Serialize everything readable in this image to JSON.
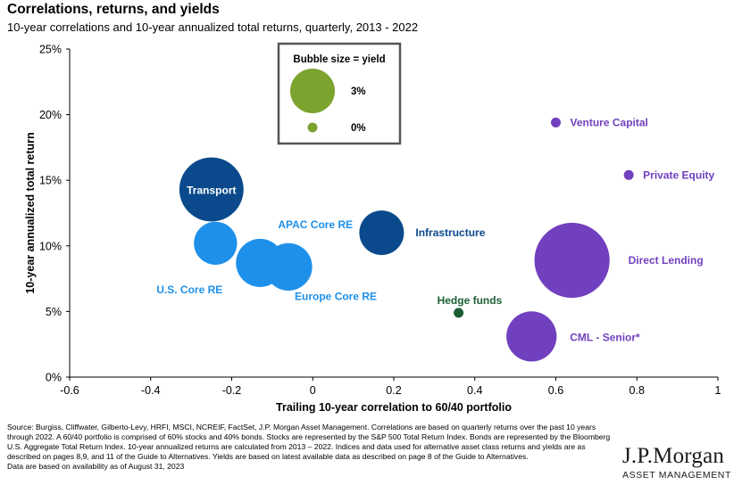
{
  "header": {
    "title": "Correlations, returns, and yields",
    "subtitle": "10-year correlations and 10-year annualized total returns, quarterly, 2013 - 2022"
  },
  "chart_data": {
    "type": "scatter",
    "xlabel": "Trailing 10-year correlation to 60/40 portfolio",
    "ylabel": "10-year annualized total return",
    "xlim": [
      -0.6,
      1.0
    ],
    "ylim": [
      0,
      25
    ],
    "x_ticks": [
      "-0.6",
      "-0.4",
      "-0.2",
      "0",
      "0.2",
      "0.4",
      "0.6",
      "0.8",
      "1"
    ],
    "y_ticks": [
      "0%",
      "5%",
      "10%",
      "15%",
      "20%",
      "25%"
    ],
    "grid": false,
    "size_encoding": "yield",
    "legend": {
      "title": "Bubble size = yield",
      "placement": "top-center",
      "items": [
        {
          "label": "3%",
          "yield": 3.0
        },
        {
          "label": "0%",
          "yield": 0.0
        }
      ]
    },
    "points": [
      {
        "label": "Venture Capital",
        "x": 0.6,
        "y": 19.4,
        "yield": 0.1,
        "color": "#7140bf"
      },
      {
        "label": "Private Equity",
        "x": 0.78,
        "y": 15.4,
        "yield": 0.1,
        "color": "#7140bf"
      },
      {
        "label": "Direct Lending",
        "x": 0.64,
        "y": 8.9,
        "yield": 8.5,
        "color": "#7140bf"
      },
      {
        "label": "CML - Senior*",
        "x": 0.54,
        "y": 3.1,
        "yield": 3.8,
        "color": "#7140bf"
      },
      {
        "label": "Transport",
        "x": -0.25,
        "y": 14.3,
        "yield": 6.2,
        "color": "#0a4a8c"
      },
      {
        "label": "Infrastructure",
        "x": 0.17,
        "y": 11.0,
        "yield": 3.0,
        "color": "#0a4a8c"
      },
      {
        "label": "APAC Core RE",
        "x": -0.24,
        "y": 10.2,
        "yield": 2.8,
        "color": "#1e90ea"
      },
      {
        "label": "U.S. Core RE",
        "x": -0.13,
        "y": 8.7,
        "yield": 3.5,
        "color": "#1e90ea"
      },
      {
        "label": "Europe Core RE",
        "x": -0.06,
        "y": 8.4,
        "yield": 3.4,
        "color": "#1e90ea"
      },
      {
        "label": "Hedge funds",
        "x": 0.36,
        "y": 4.9,
        "yield": 0.1,
        "color": "#1c5e33"
      }
    ]
  },
  "footer": {
    "source": "Source: Burgiss, Cliffwater, Gilberto-Levy, HRFI, MSCI, NCREIF, FactSet, J.P. Morgan Asset Management. Correlations are based on quarterly returns over the past 10 years through 2022. A 60/40 portfolio is comprised of 60% stocks and 40% bonds. Stocks are represented by the S&P 500 Total Return Index. Bonds are represented by the Bloomberg U.S. Aggregate Total Return Index. 10-year annualized returns are calculated from 2013 – 2022. Indices and data used for alternative asset class returns and yields are as described on pages 8,9, and 11 of the Guide to Alternatives. Yields are based on latest available data as described on page 8 of the Guide to Alternatives.",
    "availability": "Data are based on availability as of August 31, 2023"
  },
  "logo": {
    "name": "J.P.Morgan",
    "sub": "ASSET MANAGEMENT"
  }
}
